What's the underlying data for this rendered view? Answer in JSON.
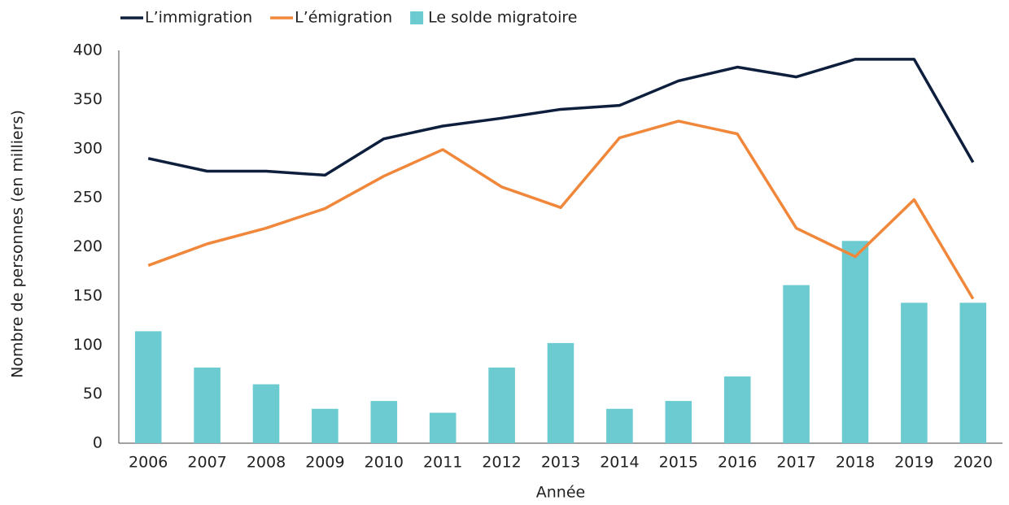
{
  "chart_data": {
    "type": "combo",
    "categories": [
      "2006",
      "2007",
      "2008",
      "2009",
      "2010",
      "2011",
      "2012",
      "2013",
      "2014",
      "2015",
      "2016",
      "2017",
      "2018",
      "2019",
      "2020"
    ],
    "series": [
      {
        "name": "L’immigration",
        "type": "line",
        "color": "#0d1f3c",
        "values": [
          290,
          277,
          277,
          273,
          310,
          323,
          331,
          340,
          344,
          369,
          383,
          373,
          391,
          391,
          286
        ]
      },
      {
        "name": "L’émigration",
        "type": "line",
        "color": "#f0873a",
        "values": [
          181,
          203,
          219,
          239,
          272,
          299,
          261,
          240,
          311,
          328,
          315,
          219,
          190,
          248,
          147
        ]
      },
      {
        "name": "Le solde migratoire",
        "type": "bar",
        "color": "#6ccbd0",
        "values": [
          114,
          77,
          60,
          35,
          43,
          31,
          77,
          102,
          35,
          43,
          68,
          161,
          206,
          143,
          143
        ]
      }
    ],
    "ylim": [
      0,
      400
    ],
    "yticks": [
      0,
      50,
      100,
      150,
      200,
      250,
      300,
      350,
      400
    ],
    "ylabel": "Nombre de personnes (en milliers)",
    "xlabel": "Année",
    "grid": false,
    "legend": "top"
  }
}
